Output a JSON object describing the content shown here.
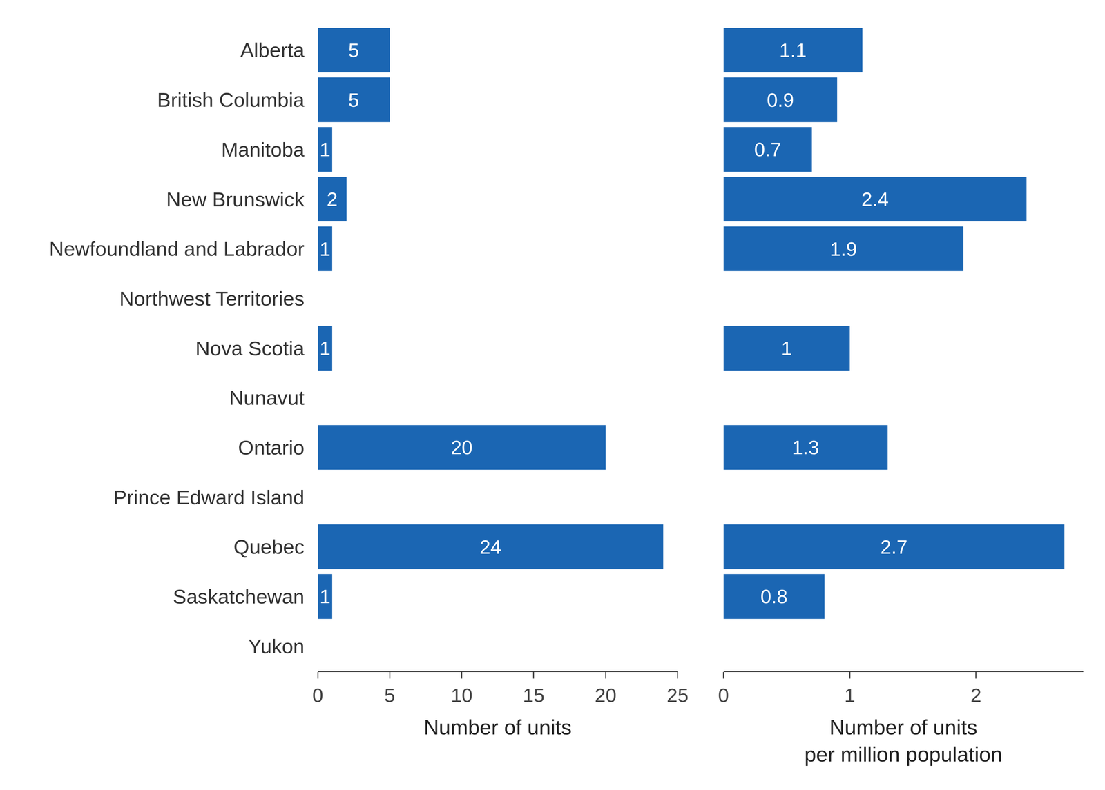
{
  "chart_data": [
    {
      "type": "bar",
      "orientation": "horizontal",
      "categories": [
        "Alberta",
        "British Columbia",
        "Manitoba",
        "New Brunswick",
        "Newfoundland and Labrador",
        "Northwest Territories",
        "Nova Scotia",
        "Nunavut",
        "Ontario",
        "Prince Edward Island",
        "Quebec",
        "Saskatchewan",
        "Yukon"
      ],
      "values": [
        5,
        5,
        1,
        2,
        1,
        null,
        1,
        null,
        20,
        null,
        24,
        1,
        null
      ],
      "color": "#1b66b3",
      "x_label": [
        "Number of units"
      ],
      "xlim": [
        0,
        25
      ],
      "xticks": [
        0,
        5,
        10,
        15,
        20,
        25
      ],
      "data_labels": true,
      "grid": false
    },
    {
      "type": "bar",
      "orientation": "horizontal",
      "categories": [
        "Alberta",
        "British Columbia",
        "Manitoba",
        "New Brunswick",
        "Newfoundland and Labrador",
        "Northwest Territories",
        "Nova Scotia",
        "Nunavut",
        "Ontario",
        "Prince Edward Island",
        "Quebec",
        "Saskatchewan",
        "Yukon"
      ],
      "values": [
        1.1,
        0.9,
        0.7,
        2.4,
        1.9,
        null,
        1,
        null,
        1.3,
        null,
        2.7,
        0.8,
        null
      ],
      "color": "#1b66b3",
      "x_label": [
        "Number of units",
        "per million population"
      ],
      "xlim": [
        0,
        2.85
      ],
      "xticks": [
        0,
        1,
        2
      ],
      "data_labels": true,
      "grid": false,
      "tick_labels": "x"
    }
  ]
}
